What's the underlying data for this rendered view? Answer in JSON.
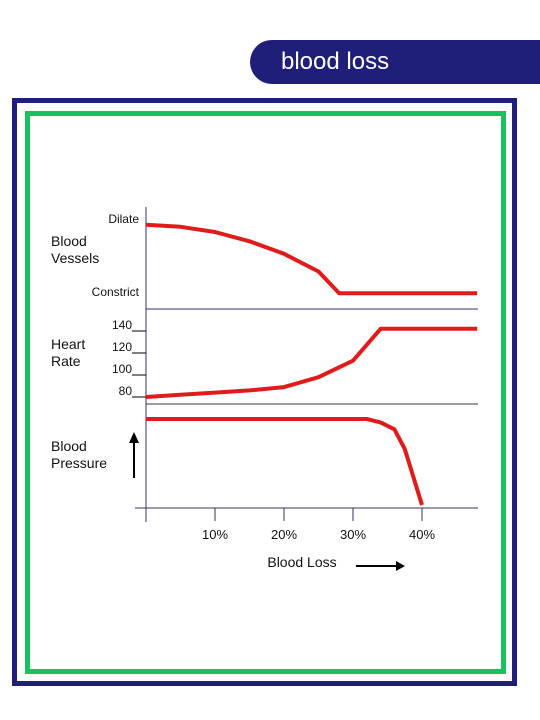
{
  "header": {
    "title": "blood loss"
  },
  "colors": {
    "banner": "#1f1f7a",
    "outer_frame": "#1f1f7a",
    "inner_frame": "#17c25f",
    "curve": "#e01b1b",
    "axis": "#333366"
  },
  "chart_data": {
    "type": "line",
    "title": "",
    "xlabel": "Blood Loss",
    "x_tick_labels": [
      "10%",
      "20%",
      "30%",
      "40%"
    ],
    "x_tick_values": [
      10,
      20,
      30,
      40
    ],
    "xlim": [
      0,
      48
    ],
    "grid": false,
    "panels": [
      {
        "label": "Blood\nVessels",
        "label_lines": [
          "Blood",
          "Vessels"
        ],
        "ytick_labels": [
          "Dilate",
          "Constrict"
        ],
        "ylim": [
          0,
          1
        ],
        "series": [
          {
            "values": [
              [
                0,
                0.83
              ],
              [
                5,
                0.81
              ],
              [
                10,
                0.76
              ],
              [
                15,
                0.67
              ],
              [
                20,
                0.55
              ],
              [
                25,
                0.38
              ],
              [
                28,
                0.17
              ],
              [
                48,
                0.17
              ]
            ]
          }
        ]
      },
      {
        "label": "Heart\nRate",
        "label_lines": [
          "Heart",
          "Rate"
        ],
        "ytick_labels": [
          "140",
          "120",
          "100",
          "80"
        ],
        "ytick_values": [
          140,
          120,
          100,
          80
        ],
        "ylim": [
          75,
          150
        ],
        "series": [
          {
            "values": [
              [
                0,
                80
              ],
              [
                5,
                82
              ],
              [
                10,
                84
              ],
              [
                15,
                86
              ],
              [
                20,
                89
              ],
              [
                25,
                98
              ],
              [
                30,
                113
              ],
              [
                34,
                142
              ],
              [
                48,
                142
              ]
            ]
          }
        ]
      },
      {
        "label": "Blood\nPressure",
        "label_lines": [
          "Blood",
          "Pressure"
        ],
        "ylim": [
          0,
          1
        ],
        "series": [
          {
            "values": [
              [
                0,
                1
              ],
              [
                32,
                1
              ],
              [
                34,
                0.96
              ],
              [
                36,
                0.88
              ],
              [
                37.5,
                0.65
              ],
              [
                40,
                0
              ]
            ]
          }
        ]
      }
    ]
  }
}
